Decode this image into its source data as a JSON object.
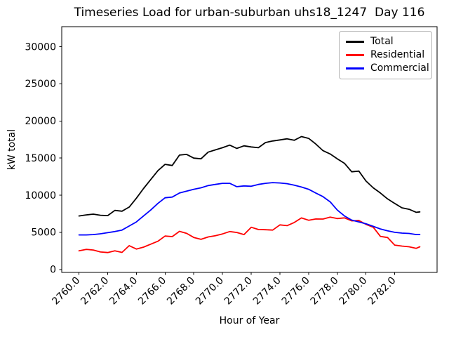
{
  "chart_data": {
    "type": "line",
    "title": "Timeseries Load for urban-suburban uhs18_1247  Day 116",
    "xlabel": "Hour of Year",
    "ylabel": "kW total",
    "grid": false,
    "legend_position": "upper right",
    "xtick_rotation": 45,
    "xlim": [
      2758.8,
      2784.95
    ],
    "ylim": [
      -400,
      32700
    ],
    "xticks": [
      2760,
      2762,
      2764,
      2766,
      2768,
      2770,
      2772,
      2774,
      2776,
      2778,
      2780,
      2782
    ],
    "xtick_labels": [
      "2760.0",
      "2762.0",
      "2764.0",
      "2766.0",
      "2768.0",
      "2770.0",
      "2772.0",
      "2774.0",
      "2776.0",
      "2778.0",
      "2780.0",
      "2782.0"
    ],
    "yticks": [
      0,
      5000,
      10000,
      15000,
      20000,
      25000,
      30000
    ],
    "ytick_labels": [
      "0",
      "5000",
      "10000",
      "15000",
      "20000",
      "25000",
      "30000"
    ],
    "x": [
      2760.0,
      2760.5,
      2761.0,
      2761.5,
      2762.0,
      2762.5,
      2763.0,
      2763.5,
      2764.0,
      2764.5,
      2765.0,
      2765.5,
      2766.0,
      2766.5,
      2767.0,
      2767.5,
      2768.0,
      2768.5,
      2769.0,
      2769.5,
      2770.0,
      2770.5,
      2771.0,
      2771.5,
      2772.0,
      2772.5,
      2773.0,
      2773.5,
      2774.0,
      2774.5,
      2775.0,
      2775.5,
      2776.0,
      2776.5,
      2777.0,
      2777.5,
      2778.0,
      2778.5,
      2779.0,
      2779.5,
      2780.0,
      2780.5,
      2781.0,
      2781.5,
      2782.0,
      2782.5,
      2783.0,
      2783.5,
      2783.75
    ],
    "series": [
      {
        "name": "Total",
        "color": "#000000",
        "values": [
          7200,
          7350,
          7450,
          7300,
          7250,
          7950,
          7850,
          8400,
          9600,
          10900,
          12100,
          13300,
          14150,
          14000,
          15400,
          15500,
          15000,
          14900,
          15800,
          16100,
          16400,
          16750,
          16300,
          16650,
          16500,
          16400,
          17100,
          17300,
          17450,
          17600,
          17400,
          17900,
          17650,
          16900,
          16000,
          15550,
          14900,
          14300,
          13150,
          13250,
          11900,
          11000,
          10300,
          9500,
          8900,
          8300,
          8100,
          7700,
          7750
        ]
      },
      {
        "name": "Residential",
        "color": "#ff0000",
        "values": [
          2500,
          2700,
          2620,
          2350,
          2280,
          2500,
          2300,
          3200,
          2750,
          3000,
          3400,
          3800,
          4500,
          4420,
          5130,
          4860,
          4310,
          4050,
          4375,
          4550,
          4780,
          5100,
          4980,
          4700,
          5680,
          5380,
          5350,
          5300,
          6000,
          5900,
          6320,
          6940,
          6630,
          6800,
          6790,
          7050,
          6850,
          6950,
          6540,
          6600,
          6070,
          5690,
          4450,
          4300,
          3280,
          3150,
          3050,
          2840,
          3050
        ]
      },
      {
        "name": "Commercial",
        "color": "#0000ff",
        "values": [
          4650,
          4650,
          4700,
          4800,
          4950,
          5100,
          5300,
          5850,
          6400,
          7200,
          8000,
          8900,
          9650,
          9750,
          10300,
          10550,
          10800,
          11000,
          11300,
          11450,
          11600,
          11600,
          11150,
          11250,
          11200,
          11450,
          11600,
          11700,
          11650,
          11550,
          11350,
          11100,
          10800,
          10300,
          9800,
          9100,
          8000,
          7200,
          6650,
          6400,
          6150,
          5800,
          5450,
          5200,
          5000,
          4900,
          4850,
          4700,
          4700
        ]
      }
    ]
  }
}
